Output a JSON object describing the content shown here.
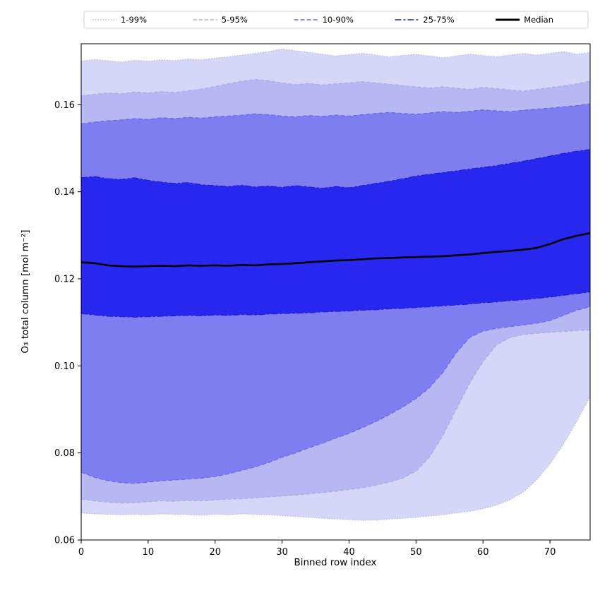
{
  "figure": {
    "background": "#ffffff",
    "frame_color": "#000000"
  },
  "chart_data": {
    "type": "area",
    "title": "",
    "xlabel": "Binned row index",
    "ylabel": "O₃ total column [mol m⁻²]",
    "xlim": [
      0,
      76
    ],
    "ylim": [
      0.06,
      0.174
    ],
    "xticks": [
      0,
      10,
      20,
      30,
      40,
      50,
      60,
      70
    ],
    "yticks": [
      0.06,
      0.08,
      0.1,
      0.12,
      0.14,
      0.16
    ],
    "grid": false,
    "legend": {
      "position": "top",
      "border_color": "#cccccc",
      "entries": [
        "1-99%",
        "5-95%",
        "10-90%",
        "25-75%",
        "Median"
      ]
    },
    "x": [
      0,
      2,
      4,
      6,
      8,
      10,
      12,
      14,
      16,
      18,
      20,
      22,
      24,
      26,
      28,
      30,
      32,
      34,
      36,
      38,
      40,
      42,
      44,
      46,
      48,
      50,
      52,
      54,
      56,
      58,
      60,
      62,
      64,
      66,
      68,
      70,
      72,
      74,
      76
    ],
    "bands": [
      {
        "name": "1-99%",
        "fill": "#d6d6f8",
        "edge": "#b8b8dd",
        "dash": "1.5 2.2",
        "lower": [
          0.0662,
          0.066,
          0.0659,
          0.0658,
          0.0659,
          0.0658,
          0.066,
          0.0659,
          0.0658,
          0.0657,
          0.0659,
          0.0658,
          0.066,
          0.0659,
          0.0658,
          0.0656,
          0.0654,
          0.0652,
          0.065,
          0.0648,
          0.0647,
          0.0645,
          0.0646,
          0.0648,
          0.065,
          0.0652,
          0.0655,
          0.0658,
          0.0662,
          0.0666,
          0.0672,
          0.068,
          0.0692,
          0.071,
          0.0738,
          0.0775,
          0.082,
          0.0872,
          0.093
        ],
        "upper": [
          0.17,
          0.1704,
          0.1701,
          0.1698,
          0.1702,
          0.17,
          0.1703,
          0.1701,
          0.1705,
          0.1703,
          0.1707,
          0.171,
          0.1714,
          0.1718,
          0.1722,
          0.1728,
          0.1724,
          0.172,
          0.1716,
          0.1712,
          0.1715,
          0.1718,
          0.1714,
          0.171,
          0.1713,
          0.1716,
          0.1712,
          0.1708,
          0.1712,
          0.1716,
          0.1713,
          0.171,
          0.1714,
          0.1718,
          0.1714,
          0.1718,
          0.1722,
          0.1716,
          0.172
        ]
      },
      {
        "name": "5-95%",
        "fill": "#b7b7f3",
        "edge": "#a9a9ef",
        "dash": "5 3",
        "lower": [
          0.0694,
          0.069,
          0.0687,
          0.0685,
          0.0686,
          0.0688,
          0.069,
          0.0689,
          0.0691,
          0.069,
          0.0692,
          0.0694,
          0.0695,
          0.0697,
          0.0699,
          0.0701,
          0.0703,
          0.0706,
          0.0709,
          0.0712,
          0.0716,
          0.072,
          0.0726,
          0.0733,
          0.0742,
          0.0758,
          0.079,
          0.084,
          0.09,
          0.096,
          0.101,
          0.1048,
          0.1065,
          0.1072,
          0.1075,
          0.1077,
          0.1079,
          0.1081,
          0.1083
        ],
        "upper": [
          0.162,
          0.1624,
          0.1627,
          0.1625,
          0.1629,
          0.1627,
          0.163,
          0.1628,
          0.1632,
          0.1636,
          0.1642,
          0.1648,
          0.1654,
          0.1658,
          0.1655,
          0.165,
          0.1646,
          0.1649,
          0.1645,
          0.1648,
          0.165,
          0.1653,
          0.165,
          0.1647,
          0.1644,
          0.1641,
          0.1638,
          0.1641,
          0.1638,
          0.1635,
          0.164,
          0.1637,
          0.1634,
          0.1631,
          0.1635,
          0.1639,
          0.1643,
          0.1648,
          0.1654
        ]
      },
      {
        "name": "10-90%",
        "fill": "#7e7ef0",
        "edge": "#6868ee",
        "dash": "6 3",
        "lower": [
          0.0756,
          0.0744,
          0.0736,
          0.0732,
          0.073,
          0.0733,
          0.0736,
          0.0738,
          0.074,
          0.0742,
          0.0746,
          0.0752,
          0.076,
          0.0768,
          0.0778,
          0.079,
          0.08,
          0.0812,
          0.0822,
          0.0834,
          0.0845,
          0.0858,
          0.0872,
          0.0888,
          0.0905,
          0.0925,
          0.095,
          0.0985,
          0.103,
          0.1065,
          0.108,
          0.1086,
          0.109,
          0.1094,
          0.1098,
          0.1104,
          0.1116,
          0.1128,
          0.1136
        ],
        "upper": [
          0.1556,
          0.156,
          0.1563,
          0.1565,
          0.1568,
          0.1566,
          0.157,
          0.1568,
          0.1571,
          0.1569,
          0.1572,
          0.1574,
          0.1576,
          0.1579,
          0.1577,
          0.1574,
          0.1572,
          0.1575,
          0.1573,
          0.1576,
          0.1574,
          0.1577,
          0.158,
          0.1582,
          0.158,
          0.1578,
          0.1581,
          0.1584,
          0.1582,
          0.1585,
          0.1588,
          0.1586,
          0.1584,
          0.1587,
          0.159,
          0.1592,
          0.1595,
          0.1598,
          0.1602
        ]
      },
      {
        "name": "25-75%",
        "fill": "#2727f0",
        "edge": "#2020c8",
        "dash": "9 3 3 3",
        "lower": [
          0.112,
          0.1117,
          0.1114,
          0.1113,
          0.1112,
          0.1113,
          0.1114,
          0.1115,
          0.1116,
          0.1115,
          0.1117,
          0.1116,
          0.1118,
          0.1117,
          0.1119,
          0.112,
          0.1121,
          0.1122,
          0.1124,
          0.1125,
          0.1126,
          0.1128,
          0.1129,
          0.1131,
          0.1132,
          0.1134,
          0.1136,
          0.1138,
          0.114,
          0.1142,
          0.1145,
          0.1147,
          0.115,
          0.1152,
          0.1155,
          0.1158,
          0.1162,
          0.1166,
          0.117
        ],
        "upper": [
          0.1432,
          0.1435,
          0.143,
          0.1428,
          0.1432,
          0.1426,
          0.1422,
          0.1419,
          0.1421,
          0.1416,
          0.1414,
          0.1412,
          0.1415,
          0.1411,
          0.1413,
          0.141,
          0.1414,
          0.1411,
          0.1408,
          0.1412,
          0.1409,
          0.1414,
          0.1419,
          0.1424,
          0.143,
          0.1436,
          0.144,
          0.1444,
          0.1448,
          0.1452,
          0.1456,
          0.146,
          0.1465,
          0.147,
          0.1476,
          0.1482,
          0.1488,
          0.1493,
          0.1497
        ]
      }
    ],
    "median": {
      "name": "Median",
      "color": "#000000",
      "values": [
        0.1238,
        0.1236,
        0.1231,
        0.1229,
        0.1228,
        0.1229,
        0.123,
        0.1229,
        0.1231,
        0.123,
        0.1231,
        0.123,
        0.1232,
        0.1231,
        0.1233,
        0.1234,
        0.1236,
        0.1238,
        0.124,
        0.1242,
        0.1243,
        0.1245,
        0.1247,
        0.1248,
        0.1249,
        0.125,
        0.1251,
        0.1252,
        0.1254,
        0.1256,
        0.1259,
        0.1262,
        0.1264,
        0.1267,
        0.1271,
        0.128,
        0.1291,
        0.1299,
        0.1305
      ]
    }
  }
}
